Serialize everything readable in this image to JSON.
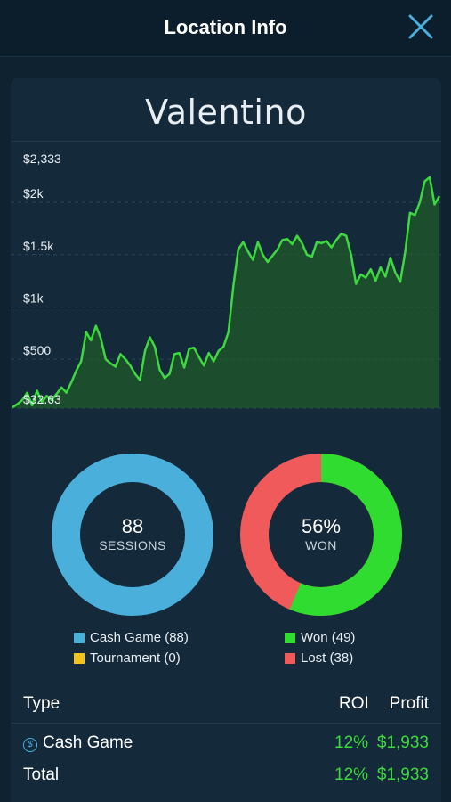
{
  "header": {
    "title": "Location Info"
  },
  "location": {
    "name": "Valentino"
  },
  "chart_data": {
    "type": "area",
    "ytick_labels": [
      "$2,333",
      "$2k",
      "$1.5k",
      "$1k",
      "$500",
      "$32.63"
    ],
    "yticks": [
      2333,
      2000,
      1500,
      1000,
      500,
      32.63
    ],
    "ylim": [
      32.63,
      2333
    ],
    "x": [
      0,
      1,
      2,
      3,
      4,
      5,
      6,
      7,
      8,
      9,
      10,
      11,
      12,
      13,
      14,
      15,
      16,
      17,
      18,
      19,
      20,
      21,
      22,
      23,
      24,
      25,
      26,
      27,
      28,
      29,
      30,
      31,
      32,
      33,
      34,
      35,
      36,
      37,
      38,
      39,
      40,
      41,
      42,
      43,
      44,
      45,
      46,
      47,
      48,
      49,
      50,
      51,
      52,
      53,
      54,
      55,
      56,
      57,
      58,
      59,
      60,
      61,
      62,
      63,
      64,
      65,
      66,
      67,
      68,
      69,
      70,
      71,
      72,
      73,
      74,
      75,
      76,
      77,
      78,
      79,
      80,
      81,
      82,
      83,
      84,
      85,
      86,
      87
    ],
    "series": [
      {
        "color": "#3ed93e",
        "values": [
          40,
          70,
          110,
          180,
          60,
          200,
          90,
          150,
          110,
          170,
          230,
          180,
          280,
          390,
          480,
          760,
          680,
          820,
          700,
          500,
          460,
          430,
          550,
          500,
          440,
          360,
          300,
          580,
          710,
          620,
          400,
          320,
          360,
          550,
          560,
          420,
          600,
          610,
          520,
          440,
          560,
          480,
          580,
          620,
          760,
          1200,
          1550,
          1620,
          1530,
          1450,
          1620,
          1500,
          1430,
          1490,
          1550,
          1640,
          1650,
          1600,
          1680,
          1610,
          1500,
          1480,
          1620,
          1610,
          1630,
          1570,
          1640,
          1700,
          1680,
          1500,
          1220,
          1310,
          1280,
          1360,
          1250,
          1380,
          1290,
          1470,
          1330,
          1240,
          1520,
          1900,
          1880,
          2000,
          2200,
          2240,
          1980,
          2060
        ]
      }
    ]
  },
  "donuts": {
    "sessions": {
      "value": "88",
      "label": "SESSIONS",
      "color": "#4aafdb",
      "fraction": 1.0
    },
    "won": {
      "value": "56%",
      "label": "WON",
      "won_color": "#2fdc2f",
      "lost_color": "#f05a5a",
      "won_fraction": 0.5633
    }
  },
  "legend_left": [
    {
      "label": "Cash Game (88)",
      "color": "#4aafdb"
    },
    {
      "label": "Tournament (0)",
      "color": "#f4c21e"
    }
  ],
  "legend_right": [
    {
      "label": "Won (49)",
      "color": "#2fdc2f"
    },
    {
      "label": "Lost (38)",
      "color": "#f05a5a"
    }
  ],
  "table": {
    "headers": {
      "type": "Type",
      "roi": "ROI",
      "profit": "Profit"
    },
    "rows": [
      {
        "type": "Cash Game",
        "icon": "dollar-coin-icon",
        "roi": "12%",
        "profit": "$1,933"
      }
    ],
    "total": {
      "type": "Total",
      "roi": "12%",
      "profit": "$1,933"
    }
  }
}
